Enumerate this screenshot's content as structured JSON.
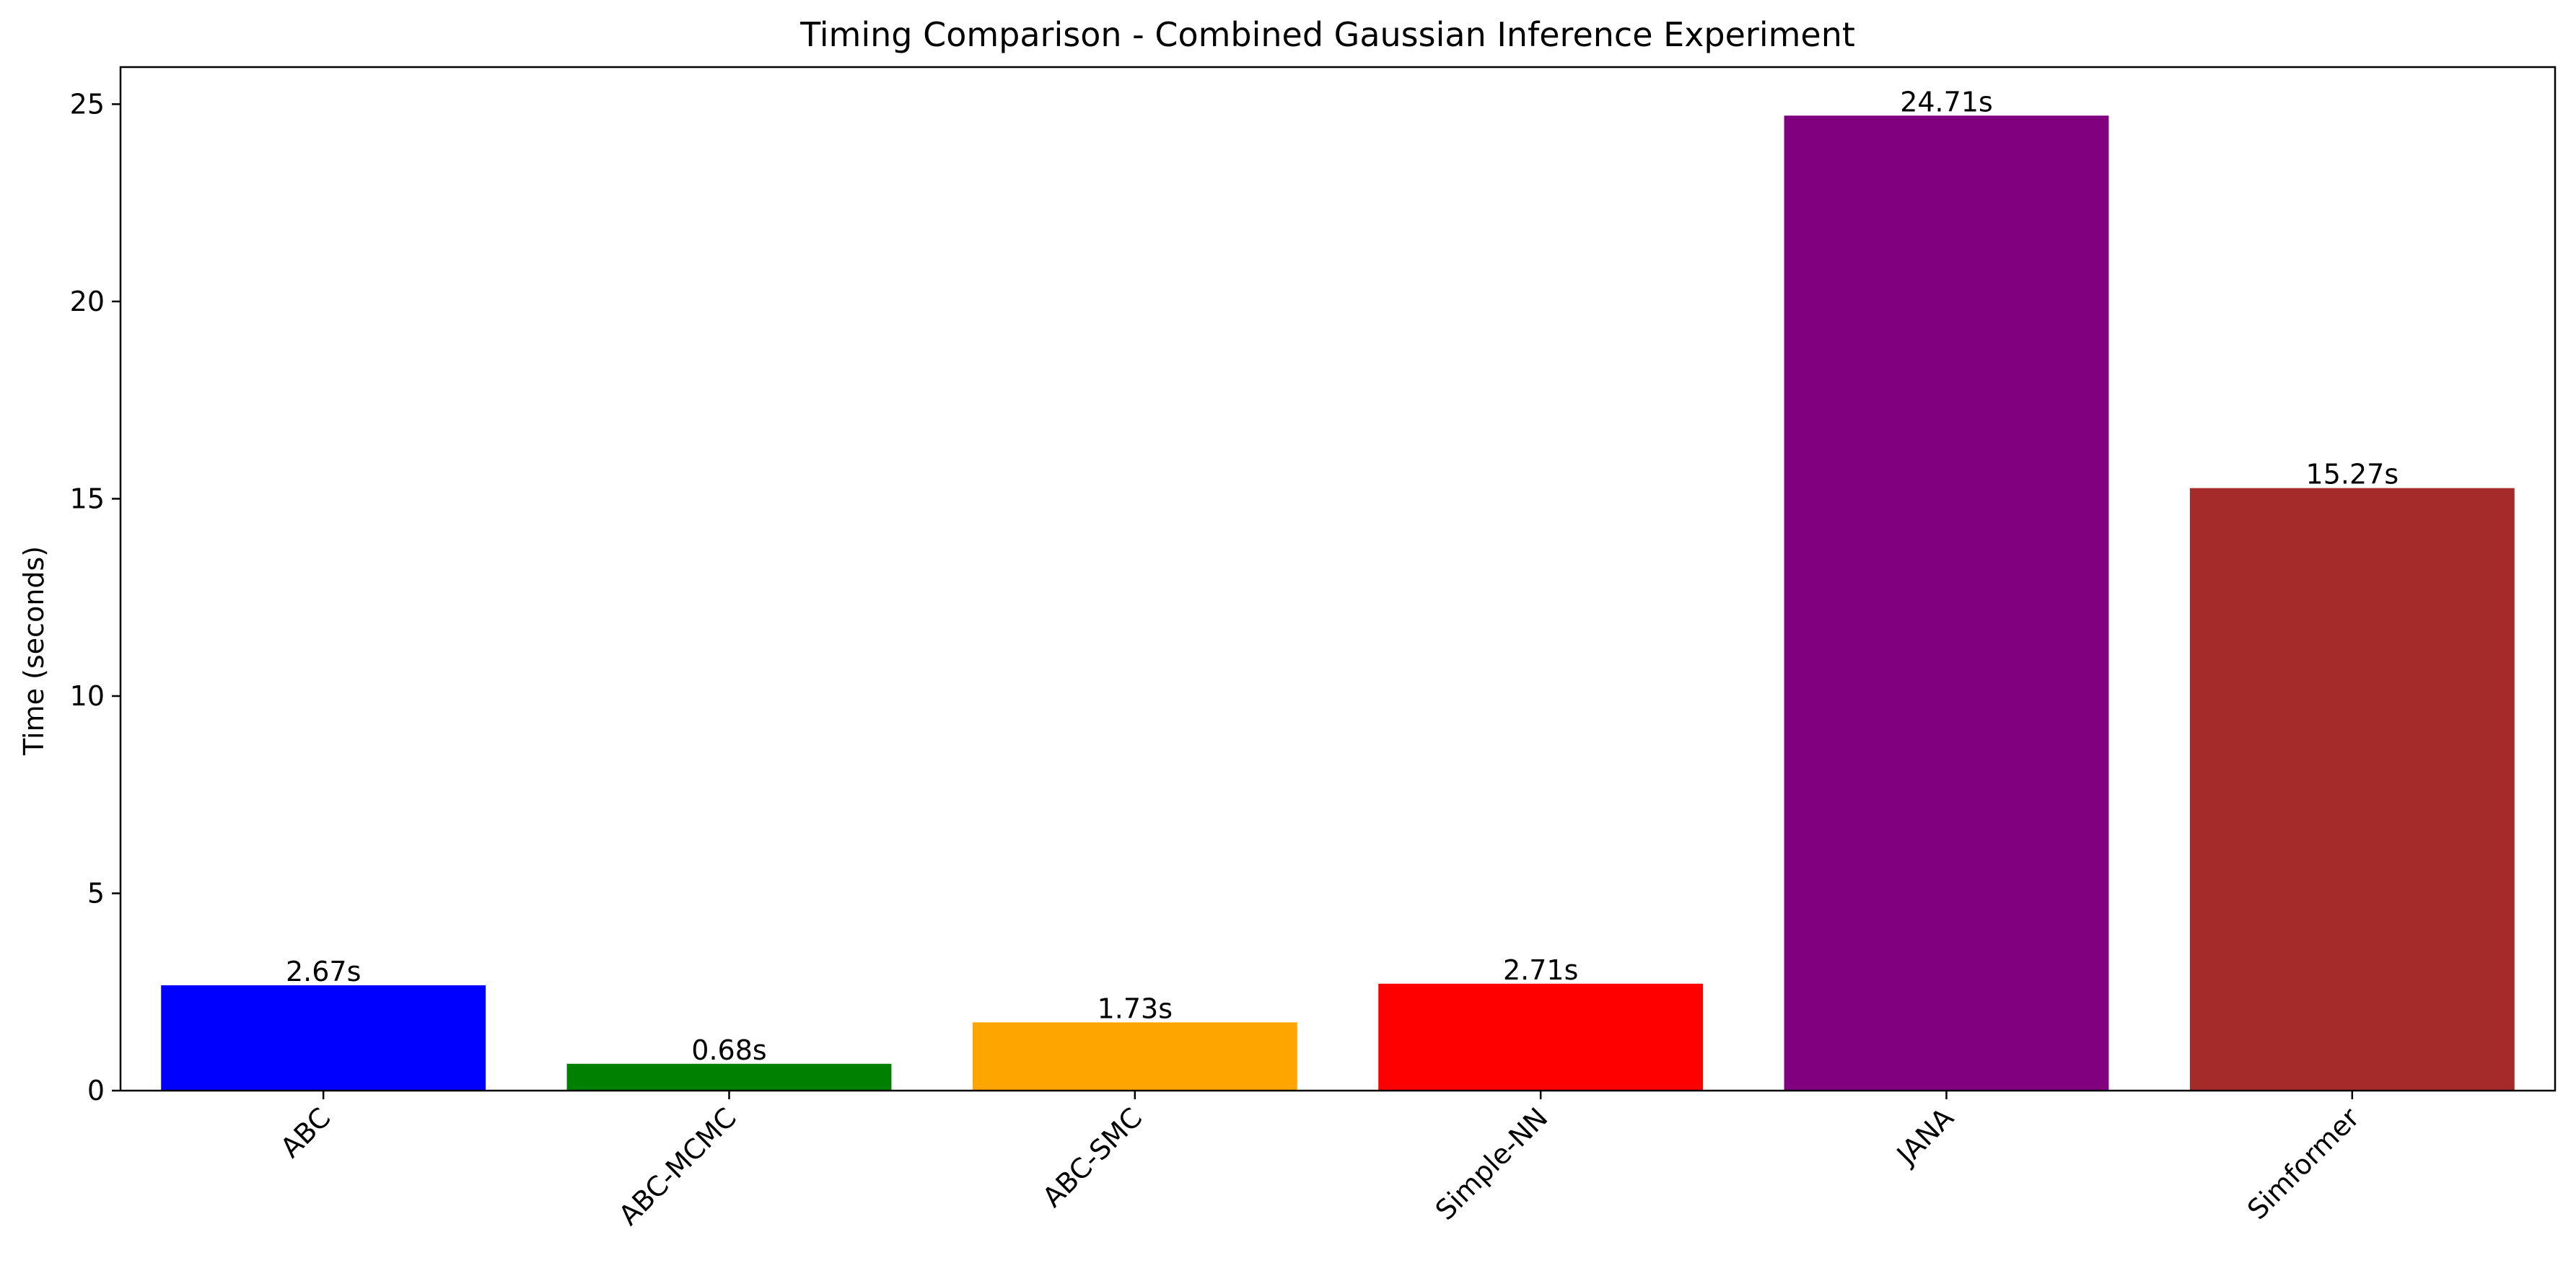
{
  "chart_data": {
    "type": "bar",
    "title": "Timing Comparison - Combined Gaussian Inference Experiment",
    "xlabel": "",
    "ylabel": "Time (seconds)",
    "categories": [
      "ABC",
      "ABC-MCMC",
      "ABC-SMC",
      "Simple-NN",
      "JANA",
      "Simformer"
    ],
    "values": [
      2.67,
      0.68,
      1.73,
      2.71,
      24.71,
      15.27
    ],
    "data_labels": [
      "2.67s",
      "0.68s",
      "1.73s",
      "2.71s",
      "24.71s",
      "15.27s"
    ],
    "colors": [
      "#0000ff",
      "#008000",
      "#ffa500",
      "#ff0000",
      "#800080",
      "#a52a2a"
    ],
    "ylim": [
      0,
      25.94
    ],
    "yticks": [
      0,
      5,
      10,
      15,
      20,
      25
    ],
    "ytick_labels": [
      "0",
      "5",
      "10",
      "15",
      "20",
      "25"
    ],
    "xtick_rotation_deg": 45,
    "grid": false,
    "legend": "none"
  }
}
